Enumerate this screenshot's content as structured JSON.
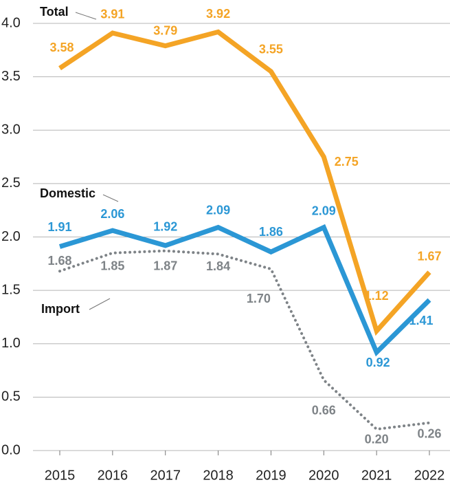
{
  "chart_data": {
    "type": "line",
    "categories": [
      "2015",
      "2016",
      "2017",
      "2018",
      "2019",
      "2020",
      "2021",
      "2022"
    ],
    "series": [
      {
        "name": "Total",
        "color": "#f4a425",
        "values": [
          3.58,
          3.91,
          3.79,
          3.92,
          3.55,
          2.75,
          1.12,
          1.67
        ]
      },
      {
        "name": "Domestic",
        "color": "#2b97d5",
        "values": [
          1.91,
          2.06,
          1.92,
          2.09,
          1.86,
          2.09,
          0.92,
          1.41
        ]
      },
      {
        "name": "Import",
        "color": "#7e8387",
        "dotted": true,
        "values": [
          1.68,
          1.85,
          1.87,
          1.84,
          1.7,
          0.66,
          0.2,
          0.26
        ],
        "value_labels": [
          "1.68",
          "1.85",
          "1.87",
          "1.84",
          "1.70",
          "0.66",
          "0.20",
          "0.26"
        ]
      }
    ],
    "ylim": [
      0,
      4
    ],
    "yticks": [
      {
        "value": 0,
        "label": "0.0"
      },
      0.5,
      {
        "value": 1,
        "label": "1.0"
      },
      1.5,
      {
        "value": 2,
        "label": "2.0"
      },
      2.5,
      {
        "value": 3,
        "label": "3.0"
      },
      3.5,
      {
        "value": 4,
        "label": "4.0"
      }
    ],
    "grid": true
  }
}
